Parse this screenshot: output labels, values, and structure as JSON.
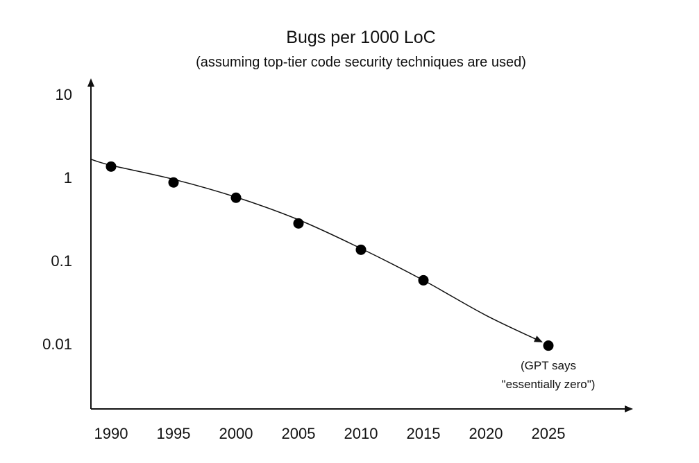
{
  "chart_data": {
    "type": "scatter",
    "title": "Bugs per 1000 LoC",
    "subtitle": "(assuming top-tier code security techniques are used)",
    "x_label": "",
    "y_label": "",
    "y_scale": "log",
    "x_ticks": [
      "1990",
      "1995",
      "2000",
      "2005",
      "2010",
      "2015",
      "2020",
      "2025"
    ],
    "y_ticks": [
      "10",
      "1",
      "0.1",
      "0.01"
    ],
    "points": [
      {
        "x": 1990,
        "y": 1.35
      },
      {
        "x": 1995,
        "y": 0.87
      },
      {
        "x": 2000,
        "y": 0.57
      },
      {
        "x": 2005,
        "y": 0.28
      },
      {
        "x": 2010,
        "y": 0.135
      },
      {
        "x": 2015,
        "y": 0.058
      },
      {
        "x": 2025,
        "y": 0.0095
      }
    ],
    "trend_line": {
      "description": "smooth curve with arrowhead ending at final point",
      "x": [
        1988.4,
        1990,
        1995,
        2000,
        2005,
        2010,
        2015,
        2020,
        2024.5
      ],
      "y": [
        1.65,
        1.4,
        0.95,
        0.58,
        0.31,
        0.14,
        0.058,
        0.022,
        0.0105
      ]
    },
    "annotation": {
      "line1": "(GPT says",
      "line2": "\"essentially zero\")",
      "x": 2025,
      "y": 0.0095
    },
    "grid": false,
    "legend": "none"
  }
}
